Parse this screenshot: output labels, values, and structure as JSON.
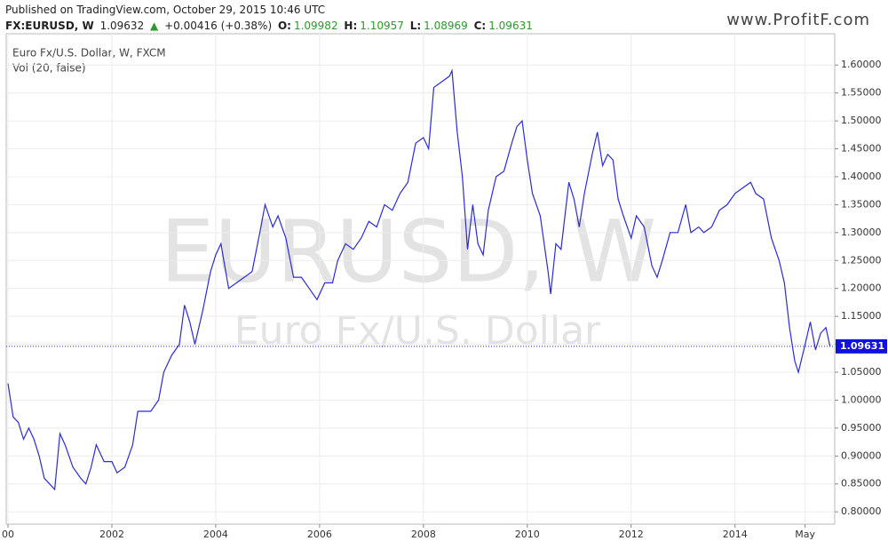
{
  "header": {
    "published": "Published on TradingView.com, October 29, 2015 10:46 UTC",
    "symbol": "FX:EURUSD, W",
    "last": "1.09632",
    "arrow": "▲",
    "change": "+0.00416 (+0.38%)",
    "ohlc": [
      {
        "label": "O:",
        "value": "1.09982"
      },
      {
        "label": "H:",
        "value": "1.10957"
      },
      {
        "label": "L:",
        "value": "1.08969"
      },
      {
        "label": "C:",
        "value": "1.09631"
      }
    ],
    "site": "www.ProfitF.com"
  },
  "chart_data": {
    "type": "line",
    "legend": [
      "Euro Fx/U.S. Dollar, W, FXCM",
      "Vol (20, false)"
    ],
    "watermark": [
      "EURUSD, W",
      "Euro Fx/U.S. Dollar"
    ],
    "series": [
      {
        "name": "EURUSD",
        "color": "#2b2bd6",
        "x": [
          2000.0,
          2000.1,
          2000.2,
          2000.3,
          2000.4,
          2000.5,
          2000.6,
          2000.7,
          2000.8,
          2000.9,
          2001.0,
          2001.1,
          2001.25,
          2001.4,
          2001.5,
          2001.6,
          2001.7,
          2001.85,
          2002.0,
          2002.1,
          2002.25,
          2002.4,
          2002.5,
          2002.6,
          2002.75,
          2002.9,
          2003.0,
          2003.15,
          2003.3,
          2003.4,
          2003.5,
          2003.6,
          2003.75,
          2003.9,
          2004.0,
          2004.1,
          2004.25,
          2004.4,
          2004.55,
          2004.7,
          2004.85,
          2004.95,
          2005.1,
          2005.2,
          2005.35,
          2005.5,
          2005.65,
          2005.8,
          2005.95,
          2006.1,
          2006.25,
          2006.35,
          2006.5,
          2006.65,
          2006.8,
          2006.95,
          2007.1,
          2007.25,
          2007.4,
          2007.55,
          2007.7,
          2007.85,
          2008.0,
          2008.1,
          2008.2,
          2008.35,
          2008.5,
          2008.55,
          2008.65,
          2008.75,
          2008.85,
          2008.95,
          2009.05,
          2009.15,
          2009.25,
          2009.4,
          2009.55,
          2009.7,
          2009.8,
          2009.9,
          2010.0,
          2010.1,
          2010.25,
          2010.4,
          2010.45,
          2010.55,
          2010.65,
          2010.8,
          2010.9,
          2011.0,
          2011.1,
          2011.25,
          2011.35,
          2011.45,
          2011.55,
          2011.65,
          2011.75,
          2011.85,
          2012.0,
          2012.1,
          2012.25,
          2012.4,
          2012.5,
          2012.6,
          2012.75,
          2012.9,
          2013.05,
          2013.15,
          2013.3,
          2013.4,
          2013.55,
          2013.7,
          2013.85,
          2014.0,
          2014.15,
          2014.3,
          2014.4,
          2014.55,
          2014.7,
          2014.85,
          2014.95,
          2015.05,
          2015.15,
          2015.22,
          2015.35,
          2015.45,
          2015.55,
          2015.65,
          2015.75,
          2015.83
        ],
        "values": [
          1.03,
          0.97,
          0.96,
          0.93,
          0.95,
          0.93,
          0.9,
          0.86,
          0.85,
          0.84,
          0.94,
          0.92,
          0.88,
          0.86,
          0.85,
          0.88,
          0.92,
          0.89,
          0.89,
          0.87,
          0.88,
          0.92,
          0.98,
          0.98,
          0.98,
          1.0,
          1.05,
          1.08,
          1.1,
          1.17,
          1.14,
          1.1,
          1.16,
          1.23,
          1.26,
          1.28,
          1.2,
          1.21,
          1.22,
          1.23,
          1.3,
          1.35,
          1.31,
          1.33,
          1.29,
          1.22,
          1.22,
          1.2,
          1.18,
          1.21,
          1.21,
          1.25,
          1.28,
          1.27,
          1.29,
          1.32,
          1.31,
          1.35,
          1.34,
          1.37,
          1.39,
          1.46,
          1.47,
          1.45,
          1.56,
          1.57,
          1.58,
          1.59,
          1.48,
          1.4,
          1.27,
          1.35,
          1.28,
          1.26,
          1.34,
          1.4,
          1.41,
          1.46,
          1.49,
          1.5,
          1.43,
          1.37,
          1.33,
          1.23,
          1.19,
          1.28,
          1.27,
          1.39,
          1.36,
          1.31,
          1.37,
          1.44,
          1.48,
          1.42,
          1.44,
          1.43,
          1.36,
          1.33,
          1.29,
          1.33,
          1.31,
          1.24,
          1.22,
          1.25,
          1.3,
          1.3,
          1.35,
          1.3,
          1.31,
          1.3,
          1.31,
          1.34,
          1.35,
          1.37,
          1.38,
          1.39,
          1.37,
          1.36,
          1.29,
          1.25,
          1.21,
          1.13,
          1.07,
          1.05,
          1.1,
          1.14,
          1.09,
          1.12,
          1.13,
          1.096
        ]
      }
    ],
    "last_value": 1.09631,
    "xlim": [
      2000,
      2015.92
    ],
    "xticks": [
      {
        "value": 2000,
        "label": "00"
      },
      2002,
      2004,
      2006,
      2008,
      2010,
      2012,
      2014,
      {
        "value": 2015.35,
        "label": "May"
      }
    ],
    "ylim": [
      0.778,
      1.656
    ],
    "yticks": [
      {
        "value": 0.8,
        "label": "0.80000"
      },
      {
        "value": 0.85,
        "label": "0.85000"
      },
      {
        "value": 0.9,
        "label": "0.90000"
      },
      {
        "value": 0.95,
        "label": "0.95000"
      },
      {
        "value": 1.0,
        "label": "1.00000"
      },
      {
        "value": 1.05,
        "label": "1.05000"
      },
      {
        "value": 1.1,
        "label": "1.10000"
      },
      {
        "value": 1.15,
        "label": "1.15000"
      },
      {
        "value": 1.2,
        "label": "1.20000"
      },
      {
        "value": 1.25,
        "label": "1.25000"
      },
      {
        "value": 1.3,
        "label": "1.30000"
      },
      {
        "value": 1.35,
        "label": "1.35000"
      },
      {
        "value": 1.4,
        "label": "1.40000"
      },
      {
        "value": 1.45,
        "label": "1.45000"
      },
      {
        "value": 1.5,
        "label": "1.50000"
      },
      {
        "value": 1.55,
        "label": "1.55000"
      },
      {
        "value": 1.6,
        "label": "1.60000"
      }
    ],
    "grid": true
  }
}
